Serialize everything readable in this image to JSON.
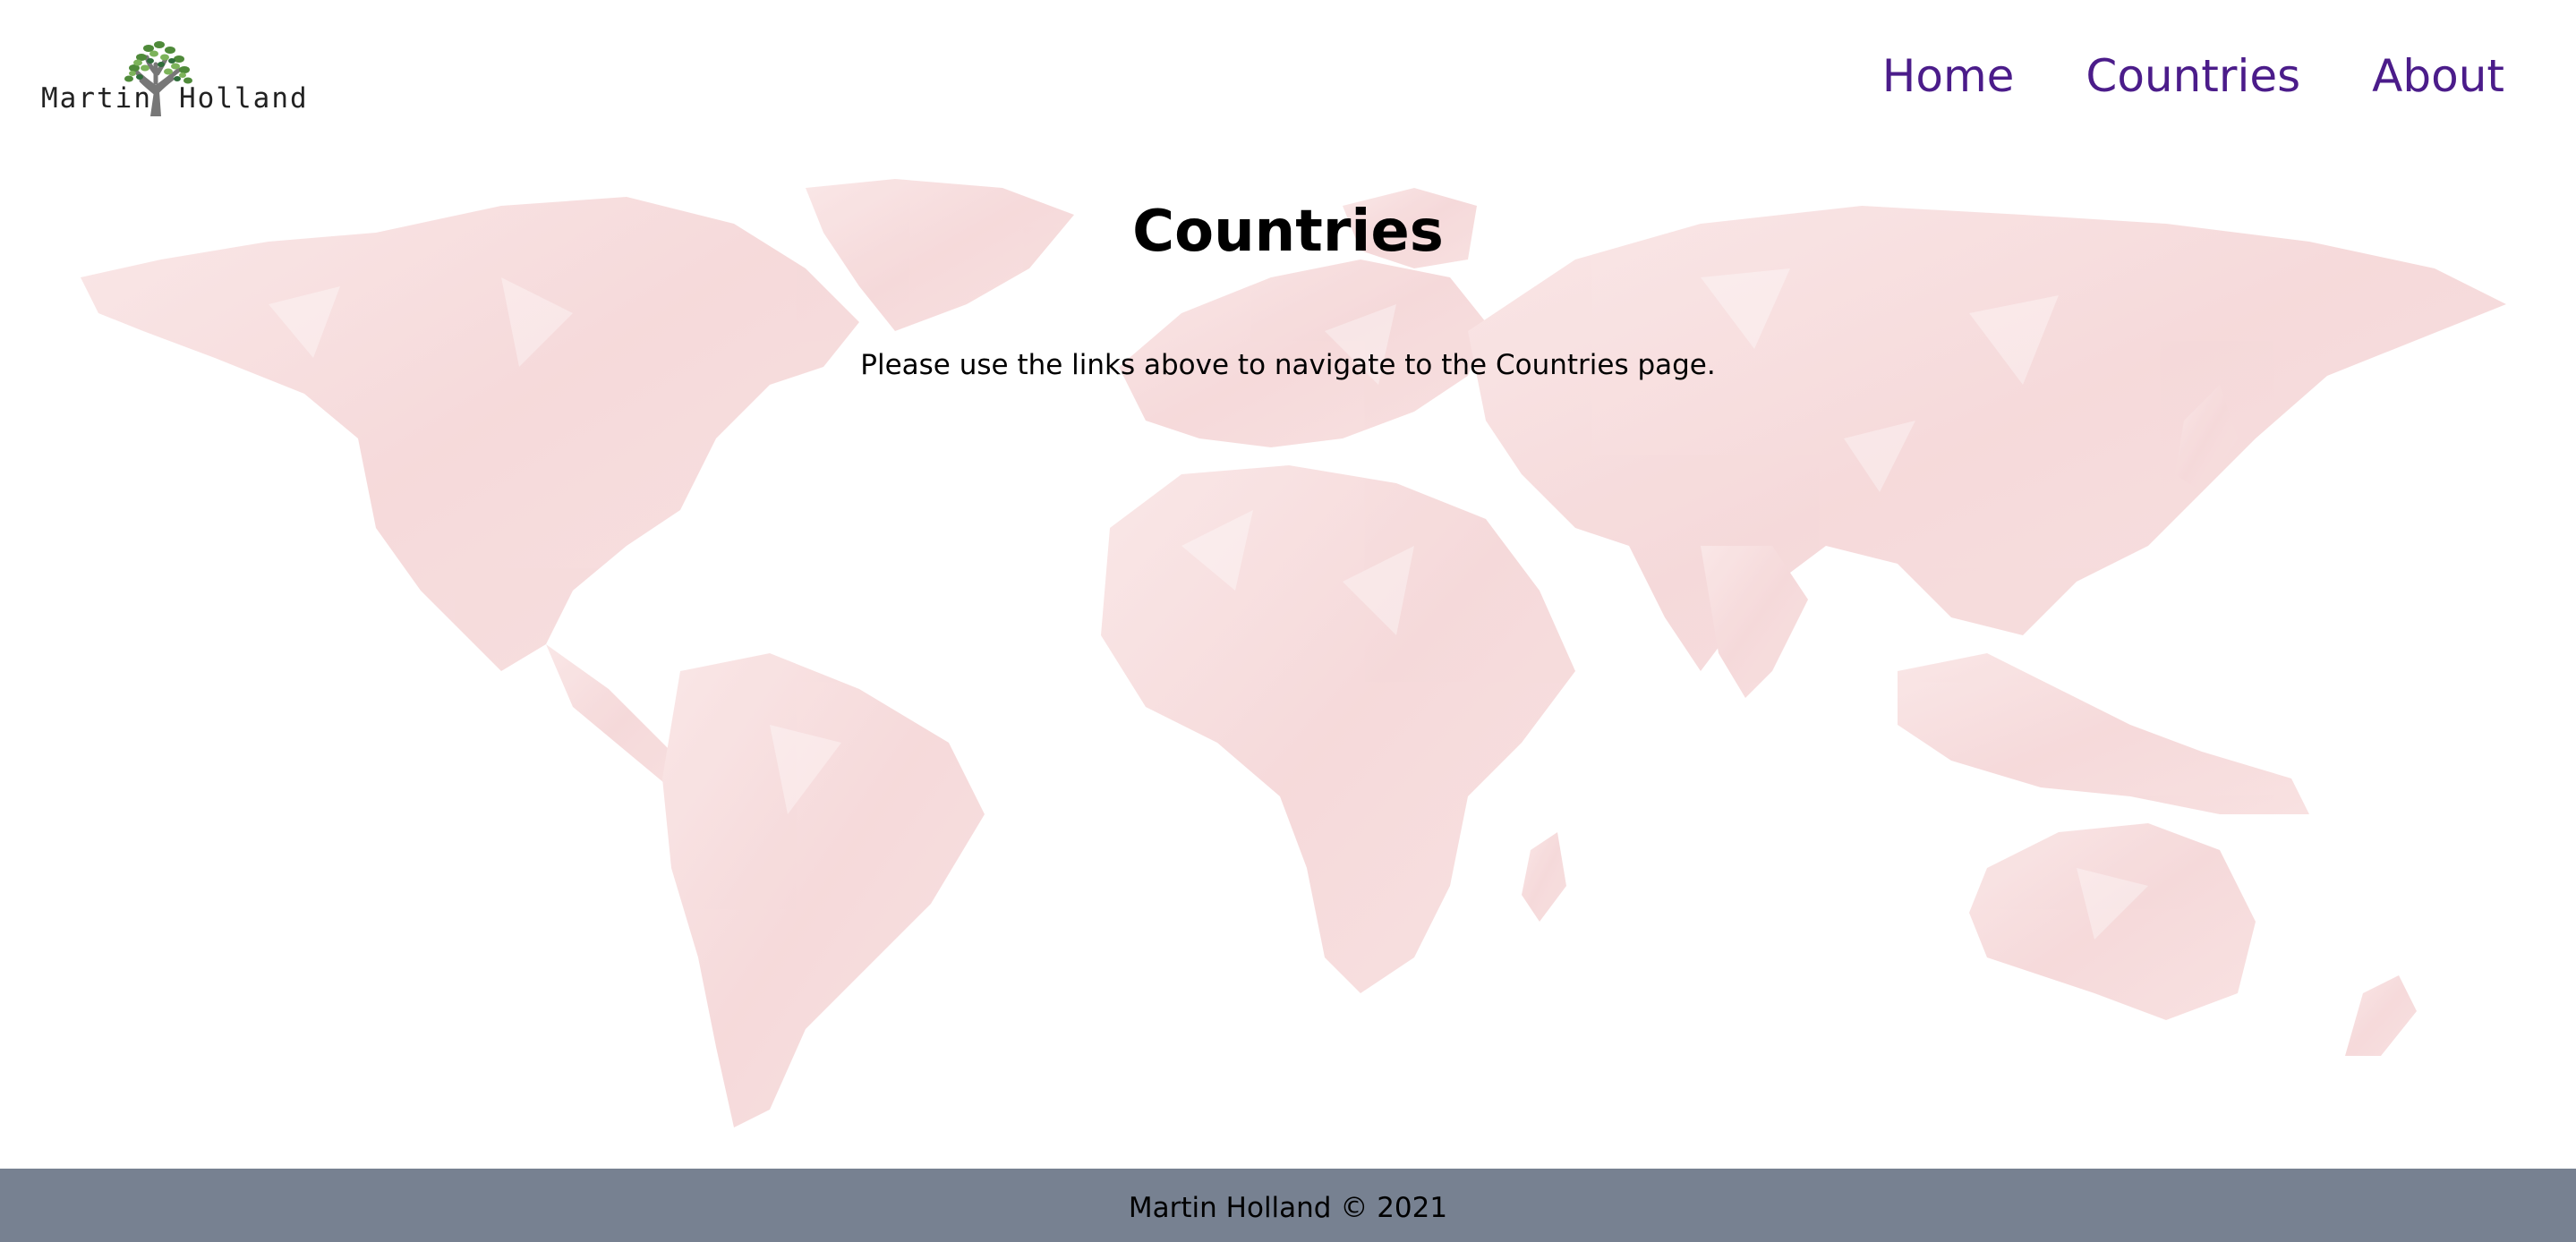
{
  "brand": {
    "first_name": "Martin",
    "last_name": "Holland",
    "logo_icon": "tree-icon"
  },
  "nav": {
    "items": [
      {
        "label": "Home"
      },
      {
        "label": "Countries"
      },
      {
        "label": "About"
      }
    ],
    "color": "#4b1c8a"
  },
  "main": {
    "title": "Countries",
    "text": "Please use the links above to navigate to the Countries page.",
    "background_icon": "world-map-icon",
    "map_color": "#f6d9da"
  },
  "footer": {
    "text": "Martin Holland © 2021",
    "background_color": "#778191"
  }
}
